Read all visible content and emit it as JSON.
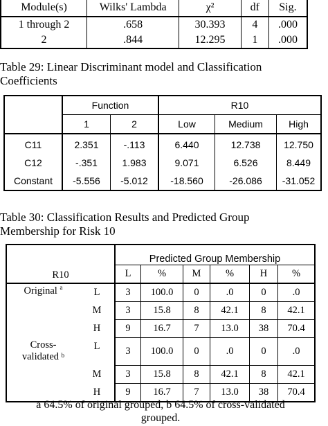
{
  "table1": {
    "headers": [
      "Module(s)",
      "Wilks' Lambda",
      "χ²",
      "df",
      "Sig."
    ],
    "rows": [
      [
        "1 through 2",
        ".658",
        "30.393",
        "4",
        ".000"
      ],
      [
        "2",
        ".844",
        "12.295",
        "1",
        ".000"
      ]
    ]
  },
  "table2": {
    "caption_line1": "Table 29: Linear Discriminant model and Classification",
    "caption_line2": "Coefficients",
    "function_header": "Function",
    "r10_header": "R10",
    "function_cols": [
      "1",
      "2"
    ],
    "r10_cols": [
      "Low",
      "Medium",
      "High"
    ],
    "rows": [
      {
        "label": "C11",
        "values": [
          "2.351",
          "-.113",
          "6.440",
          "12.738",
          "12.750"
        ]
      },
      {
        "label": "C12",
        "values": [
          "-.351",
          "1.983",
          "9.071",
          "6.526",
          "8.449"
        ]
      },
      {
        "label": "Constant",
        "values": [
          "-5.556",
          "-5.012",
          "-18.560",
          "-26.086",
          "-31.052"
        ]
      }
    ]
  },
  "table3": {
    "caption_line1": "Table 30: Classification Results and Predicted Group",
    "caption_line2": "Membership for Risk 10",
    "group_header": "Predicted Group Membership",
    "row_header": "R10",
    "cols": [
      "L",
      "%",
      "M",
      "%",
      "H",
      "%"
    ],
    "original_label": "Original",
    "original_sup": "a",
    "cross_label_1": "Cross-",
    "cross_label_2": "validated",
    "cross_sup": "b",
    "original_rows": [
      {
        "cat": "L",
        "values": [
          "3",
          "100.0",
          "0",
          ".0",
          "0",
          ".0"
        ]
      },
      {
        "cat": "M",
        "values": [
          "3",
          "15.8",
          "8",
          "42.1",
          "8",
          "42.1"
        ]
      },
      {
        "cat": "H",
        "values": [
          "9",
          "16.7",
          "7",
          "13.0",
          "38",
          "70.4"
        ]
      }
    ],
    "cross_rows": [
      {
        "cat": "L",
        "values": [
          "3",
          "100.0",
          "0",
          ".0",
          "0",
          ".0"
        ]
      },
      {
        "cat": "M",
        "values": [
          "3",
          "15.8",
          "8",
          "42.1",
          "8",
          "42.1"
        ]
      },
      {
        "cat": "H",
        "values": [
          "9",
          "16.7",
          "7",
          "13.0",
          "38",
          "70.4"
        ]
      }
    ],
    "footnote_line1": "a  64.5% of original grouped, b 64.5% of cross-validated",
    "footnote_line2": "grouped."
  }
}
